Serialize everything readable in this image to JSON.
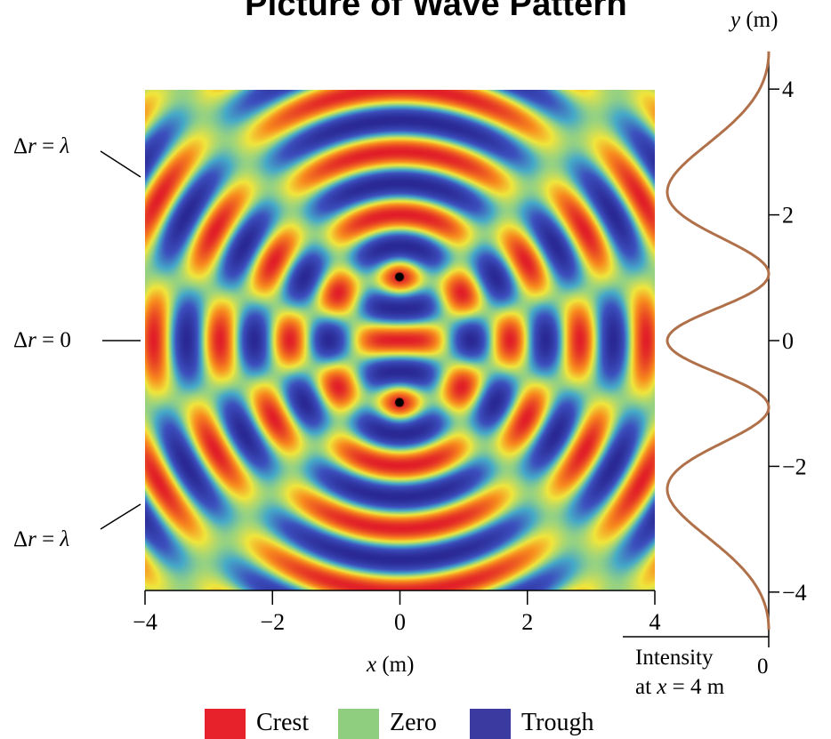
{
  "title": "Picture of Wave Pattern",
  "x_axis": {
    "label": "x (m)",
    "ticks": [
      -4,
      -2,
      0,
      2,
      4
    ],
    "range": [
      -4,
      4
    ]
  },
  "y_axis": {
    "label": "y (m)",
    "ticks": [
      4,
      2,
      0,
      -2,
      -4
    ],
    "range": [
      -4.6,
      4.6
    ]
  },
  "intensity_axis": {
    "zero_label": "0",
    "caption_line1": "Intensity",
    "caption_line2": "at x = 4 m"
  },
  "annotations": {
    "top": "Δr = λ",
    "middle": "Δr = 0",
    "bottom": "Δr = λ"
  },
  "sources": [
    {
      "x": 0,
      "y": 1
    },
    {
      "x": 0,
      "y": -1
    }
  ],
  "wavelength_m": 1,
  "legend": [
    {
      "label": "Crest",
      "color": "#e8222b"
    },
    {
      "label": "Zero",
      "color": "#8fce7e"
    },
    {
      "label": "Trough",
      "color": "#3a3aa0"
    }
  ],
  "colors": {
    "intensity_curve": "#b0714a"
  }
}
